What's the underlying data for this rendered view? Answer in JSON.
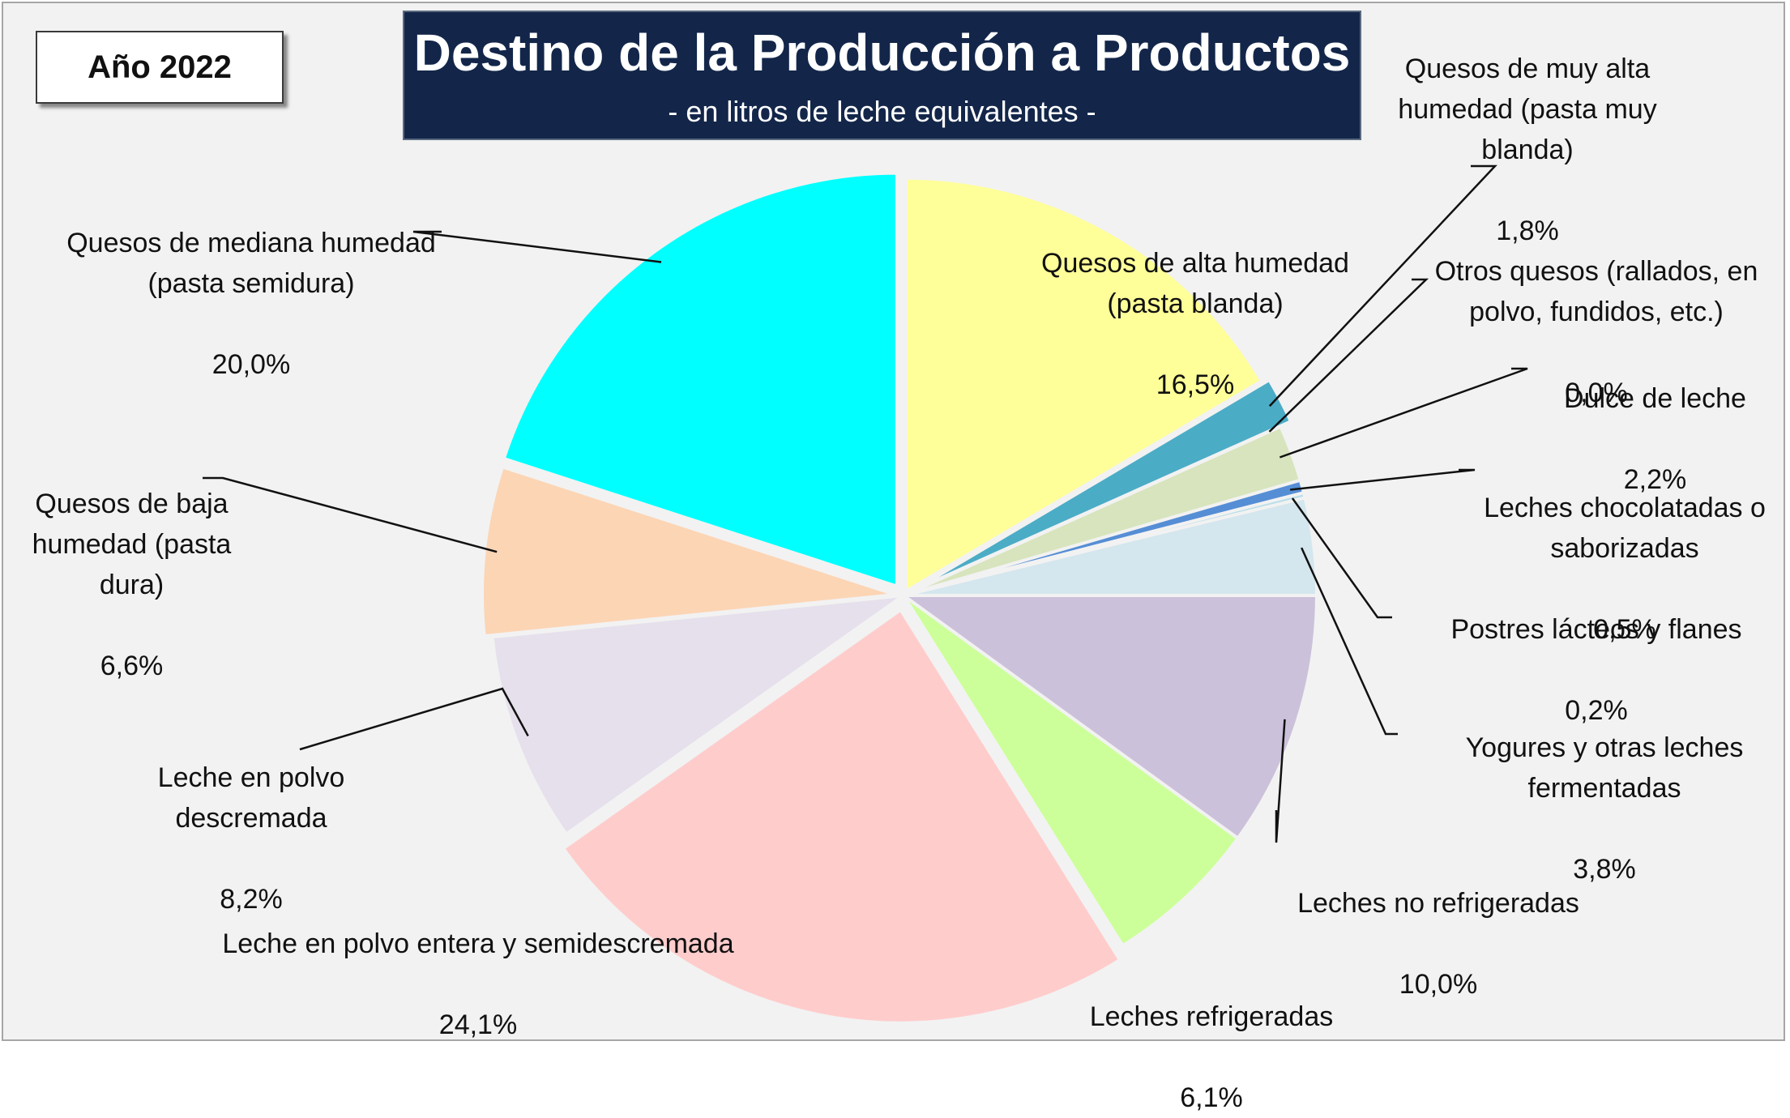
{
  "year_label": "Año 2022",
  "chart_data": {
    "type": "pie",
    "title": "Destino de la Producción a Productos",
    "subtitle": "- en litros de leche equivalentes -",
    "slices": [
      {
        "label": "Quesos de alta humedad (pasta blanda)",
        "value": 16.5,
        "value_label": "16,5%",
        "color": "#ffff99"
      },
      {
        "label": "Quesos de muy alta humedad (pasta muy blanda)",
        "value": 1.8,
        "value_label": "1,8%",
        "color": "#4bacc6"
      },
      {
        "label": "Otros quesos (rallados, en polvo, fundidos, etc.)",
        "value": 0.0,
        "value_label": "0,0%",
        "color": "#9bbb59"
      },
      {
        "label": "Dulce de leche",
        "value": 2.2,
        "value_label": "2,2%",
        "color": "#d7e4bd"
      },
      {
        "label": "Leches chocolatadas o saborizadas",
        "value": 0.5,
        "value_label": "0,5%",
        "color": "#558ed5"
      },
      {
        "label": "Postres lácteos y flanes",
        "value": 0.2,
        "value_label": "0,2%",
        "color": "#b7dee8"
      },
      {
        "label": "Yogures y otras leches fermentadas",
        "value": 3.8,
        "value_label": "3,8%",
        "color": "#d4e6ee"
      },
      {
        "label": "Leches no refrigeradas",
        "value": 10.0,
        "value_label": "10,0%",
        "color": "#ccc1da"
      },
      {
        "label": "Leches refrigeradas",
        "value": 6.1,
        "value_label": "6,1%",
        "color": "#ccff99"
      },
      {
        "label": "Leche en polvo entera y semidescremada",
        "value": 24.1,
        "value_label": "24,1%",
        "color": "#ffcccc"
      },
      {
        "label": "Leche en polvo descremada",
        "value": 8.2,
        "value_label": "8,2%",
        "color": "#e6e0ec"
      },
      {
        "label": "Quesos de baja humedad (pasta dura)",
        "value": 6.6,
        "value_label": "6,6%",
        "color": "#fcd5b5"
      },
      {
        "label": "Quesos de mediana humedad (pasta semidura)",
        "value": 20.0,
        "value_label": "20,0%",
        "color": "#00ffff"
      }
    ]
  }
}
